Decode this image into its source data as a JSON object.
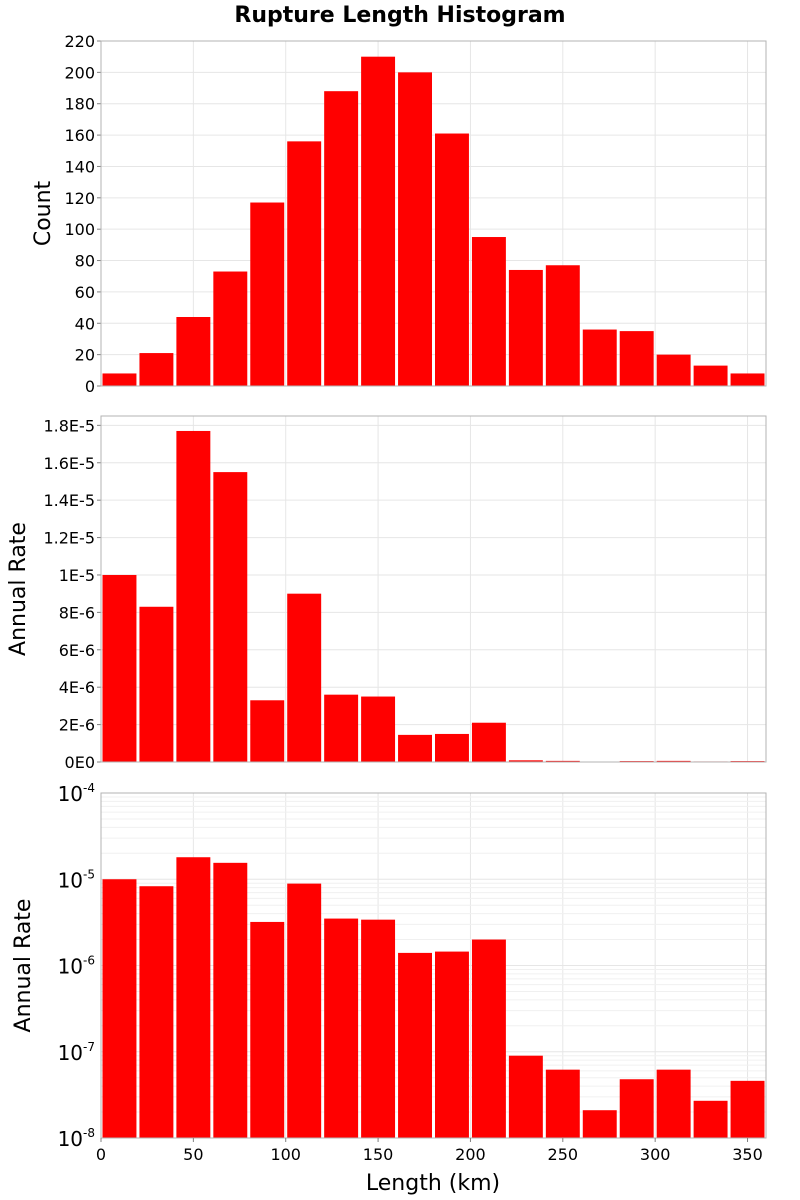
{
  "title": "Rupture Length Histogram",
  "xlabel": "Length (km)",
  "x_ticks": [
    "0",
    "50",
    "100",
    "150",
    "200",
    "250",
    "300",
    "350"
  ],
  "chart_data": [
    {
      "type": "bar",
      "title": "Rupture Length Histogram",
      "xlabel": "Length (km)",
      "ylabel": "Count",
      "bin_width_km": 20,
      "xlim": [
        0,
        360
      ],
      "ylim": [
        0,
        220
      ],
      "y_scale": "linear",
      "grid": true,
      "color": "#ff0000",
      "x_start": [
        0,
        20,
        40,
        60,
        80,
        100,
        120,
        140,
        160,
        180,
        200,
        220,
        240,
        260,
        280,
        300,
        320,
        340
      ],
      "values": [
        8,
        21,
        44,
        73,
        117,
        156,
        188,
        210,
        200,
        161,
        95,
        74,
        77,
        36,
        35,
        20,
        13,
        8
      ],
      "y_tick_labels": [
        "0",
        "20",
        "40",
        "60",
        "80",
        "100",
        "120",
        "140",
        "160",
        "180",
        "200",
        "220"
      ]
    },
    {
      "type": "bar",
      "xlabel": "Length (km)",
      "ylabel": "Annual Rate",
      "bin_width_km": 20,
      "xlim": [
        0,
        360
      ],
      "ylim": [
        0,
        1.85e-05
      ],
      "y_scale": "linear",
      "grid": true,
      "color": "#ff0000",
      "x_start": [
        0,
        20,
        40,
        60,
        80,
        100,
        120,
        140,
        160,
        180,
        200,
        220,
        240,
        260,
        280,
        300,
        320,
        340
      ],
      "values": [
        1e-05,
        8.3e-06,
        1.77e-05,
        1.55e-05,
        3.3e-06,
        9e-06,
        3.6e-06,
        3.5e-06,
        1.45e-06,
        1.5e-06,
        2.1e-06,
        9e-08,
        6e-08,
        2e-08,
        5e-08,
        6e-08,
        3e-08,
        5e-08
      ],
      "y_tick_values": [
        0,
        2e-06,
        4e-06,
        6e-06,
        8e-06,
        1e-05,
        1.2e-05,
        1.4e-05,
        1.6e-05,
        1.8e-05
      ],
      "y_tick_labels": [
        "0E0",
        "2E-6",
        "4E-6",
        "6E-6",
        "8E-6",
        "1E-5",
        "1.2E-5",
        "1.4E-5",
        "1.6E-5",
        "1.8E-5"
      ]
    },
    {
      "type": "bar",
      "xlabel": "Length (km)",
      "ylabel": "Annual Rate",
      "bin_width_km": 20,
      "xlim": [
        0,
        360
      ],
      "ylim": [
        1e-08,
        0.0001
      ],
      "y_scale": "log",
      "grid": true,
      "color": "#ff0000",
      "x_start": [
        0,
        20,
        40,
        60,
        80,
        100,
        120,
        140,
        160,
        180,
        200,
        220,
        240,
        260,
        280,
        300,
        320,
        340
      ],
      "values": [
        1e-05,
        8.3e-06,
        1.8e-05,
        1.55e-05,
        3.2e-06,
        8.9e-06,
        3.5e-06,
        3.4e-06,
        1.4e-06,
        1.45e-06,
        2e-06,
        9e-08,
        6.2e-08,
        2.1e-08,
        4.8e-08,
        6.2e-08,
        2.7e-08,
        4.6e-08
      ],
      "y_tick_labels": [
        {
          "base": "10",
          "exp": "-8"
        },
        {
          "base": "10",
          "exp": "-7"
        },
        {
          "base": "10",
          "exp": "-6"
        },
        {
          "base": "10",
          "exp": "-5"
        },
        {
          "base": "10",
          "exp": "-4"
        }
      ]
    }
  ]
}
